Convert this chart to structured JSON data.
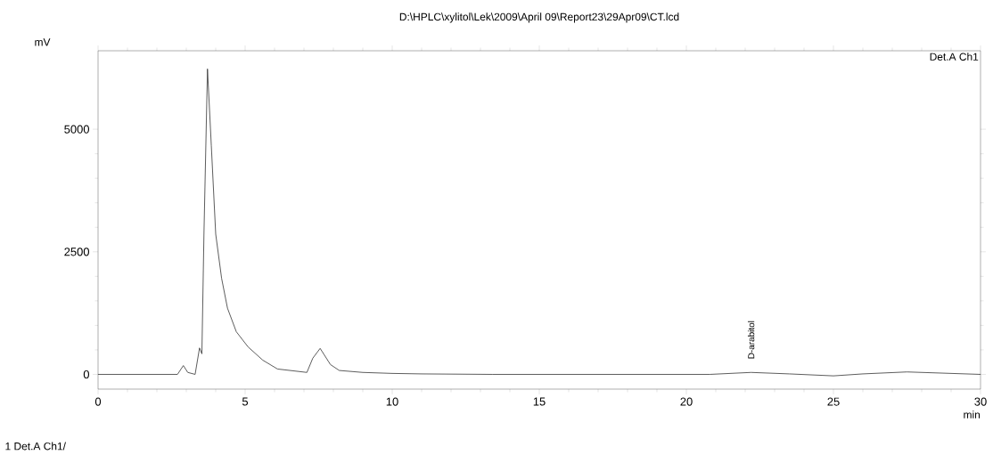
{
  "chart_data": {
    "type": "line",
    "title": "D:\\HPLC\\xylitol\\Lek\\2009\\April 09\\Report23\\29Apr09\\CT.lcd",
    "xlabel": "min",
    "ylabel": "mV",
    "x": [
      0,
      1,
      2,
      2.7,
      2.9,
      3.05,
      3.3,
      3.45,
      3.53,
      3.6,
      3.72,
      3.85,
      4.0,
      4.2,
      4.4,
      4.7,
      5.1,
      5.6,
      6.1,
      7.1,
      7.3,
      7.55,
      7.9,
      8.2,
      9,
      10,
      11,
      13.4,
      16,
      19,
      20.8,
      22.2,
      23.5,
      25,
      26,
      27.5,
      29,
      30
    ],
    "series": [
      {
        "color": "#333333",
        "values": [
          0,
          0,
          0,
          0,
          180,
          40,
          0,
          540,
          420,
          2860,
          6230,
          4670,
          2860,
          1960,
          1350,
          870,
          560,
          290,
          110,
          40,
          330,
          530,
          200,
          80,
          40,
          20,
          10,
          0,
          0,
          0,
          0,
          40,
          10,
          -30,
          10,
          50,
          20,
          0
        ]
      }
    ],
    "xlim": [
      0,
      30
    ],
    "ylim": [
      -300,
      6600
    ],
    "xticks": [
      0,
      5,
      10,
      15,
      20,
      25,
      30
    ],
    "yticks": [
      0,
      2500,
      5000
    ],
    "annotations": [
      "Det.A Ch1",
      {
        "text": "D-arabitol",
        "x": 22.2,
        "y": 40
      },
      "1 Det.A Ch1/"
    ]
  }
}
